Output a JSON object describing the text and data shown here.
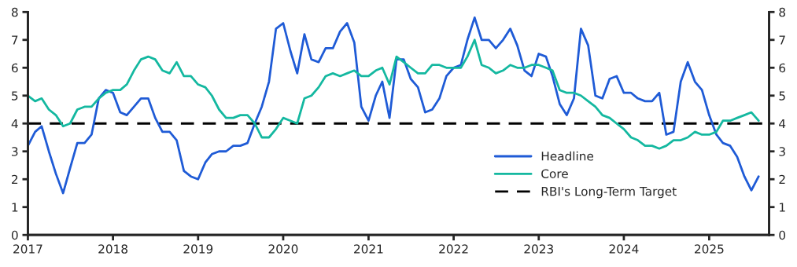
{
  "chart_data": {
    "type": "line",
    "x": [
      "2017-01",
      "2017-02",
      "2017-03",
      "2017-04",
      "2017-05",
      "2017-06",
      "2017-07",
      "2017-08",
      "2017-09",
      "2017-10",
      "2017-11",
      "2017-12",
      "2018-01",
      "2018-02",
      "2018-03",
      "2018-04",
      "2018-05",
      "2018-06",
      "2018-07",
      "2018-08",
      "2018-09",
      "2018-10",
      "2018-11",
      "2018-12",
      "2019-01",
      "2019-02",
      "2019-03",
      "2019-04",
      "2019-05",
      "2019-06",
      "2019-07",
      "2019-08",
      "2019-09",
      "2019-10",
      "2019-11",
      "2019-12",
      "2020-01",
      "2020-02",
      "2020-03",
      "2020-04",
      "2020-05",
      "2020-06",
      "2020-07",
      "2020-08",
      "2020-09",
      "2020-10",
      "2020-11",
      "2020-12",
      "2021-01",
      "2021-02",
      "2021-03",
      "2021-04",
      "2021-05",
      "2021-06",
      "2021-07",
      "2021-08",
      "2021-09",
      "2021-10",
      "2021-11",
      "2021-12",
      "2022-01",
      "2022-02",
      "2022-03",
      "2022-04",
      "2022-05",
      "2022-06",
      "2022-07",
      "2022-08",
      "2022-09",
      "2022-10",
      "2022-11",
      "2022-12",
      "2023-01",
      "2023-02",
      "2023-03",
      "2023-04",
      "2023-05",
      "2023-06",
      "2023-07",
      "2023-08",
      "2023-09",
      "2023-10",
      "2023-11",
      "2023-12",
      "2024-01",
      "2024-02",
      "2024-03",
      "2024-04",
      "2024-05",
      "2024-06",
      "2024-07",
      "2024-08",
      "2024-09",
      "2024-10",
      "2024-11",
      "2024-12",
      "2025-01",
      "2025-02",
      "2025-03",
      "2025-04",
      "2025-05",
      "2025-06",
      "2025-07",
      "2025-08"
    ],
    "series": [
      {
        "name": "Headline",
        "color": "#1f5bd6",
        "values": [
          3.2,
          3.7,
          3.9,
          3.0,
          2.2,
          1.5,
          2.4,
          3.3,
          3.3,
          3.6,
          4.9,
          5.2,
          5.1,
          4.4,
          4.3,
          4.6,
          4.9,
          4.9,
          4.2,
          3.7,
          3.7,
          3.4,
          2.3,
          2.1,
          2.0,
          2.6,
          2.9,
          3.0,
          3.0,
          3.2,
          3.2,
          3.3,
          4.0,
          4.6,
          5.5,
          7.4,
          7.6,
          6.6,
          5.8,
          7.2,
          6.3,
          6.2,
          6.7,
          6.7,
          7.3,
          7.6,
          6.9,
          4.6,
          4.1,
          5.0,
          5.5,
          4.2,
          6.3,
          6.3,
          5.6,
          5.3,
          4.4,
          4.5,
          4.9,
          5.7,
          6.0,
          6.1,
          7.0,
          7.8,
          7.0,
          7.0,
          6.7,
          7.0,
          7.4,
          6.8,
          5.9,
          5.7,
          6.5,
          6.4,
          5.7,
          4.7,
          4.3,
          4.9,
          7.4,
          6.8,
          5.0,
          4.9,
          5.6,
          5.7,
          5.1,
          5.1,
          4.9,
          4.8,
          4.8,
          5.1,
          3.6,
          3.7,
          5.5,
          6.2,
          5.5,
          5.2,
          4.3,
          3.6,
          3.3,
          3.2,
          2.8,
          2.1,
          1.6,
          2.1
        ]
      },
      {
        "name": "Core",
        "color": "#14b8a0",
        "values": [
          5.0,
          4.8,
          4.9,
          4.5,
          4.3,
          3.9,
          4.0,
          4.5,
          4.6,
          4.6,
          4.9,
          5.1,
          5.2,
          5.2,
          5.4,
          5.9,
          6.3,
          6.4,
          6.3,
          5.9,
          5.8,
          6.2,
          5.7,
          5.7,
          5.4,
          5.3,
          5.0,
          4.5,
          4.2,
          4.2,
          4.3,
          4.3,
          4.0,
          3.5,
          3.5,
          3.8,
          4.2,
          4.1,
          4.0,
          4.9,
          5.0,
          5.3,
          5.7,
          5.8,
          5.7,
          5.8,
          5.9,
          5.7,
          5.7,
          5.9,
          6.0,
          5.4,
          6.4,
          6.2,
          6.0,
          5.8,
          5.8,
          6.1,
          6.1,
          6.0,
          6.0,
          6.0,
          6.4,
          7.0,
          6.1,
          6.0,
          5.8,
          5.9,
          6.1,
          6.0,
          6.0,
          6.1,
          6.1,
          6.0,
          5.9,
          5.2,
          5.1,
          5.1,
          5.0,
          4.8,
          4.6,
          4.3,
          4.2,
          4.0,
          3.8,
          3.5,
          3.4,
          3.2,
          3.2,
          3.1,
          3.2,
          3.4,
          3.4,
          3.5,
          3.7,
          3.6,
          3.6,
          3.7,
          4.1,
          4.1,
          4.2,
          4.3,
          4.4,
          4.1
        ]
      }
    ],
    "ref_lines": [
      {
        "axis": "y",
        "value": 4,
        "label": "RBI's Long-Term Target",
        "color": "#000000",
        "line_style": "dashed"
      }
    ],
    "xlim": [
      "2017-01",
      "2025-09-15"
    ],
    "xticks": [
      {
        "value": "2017",
        "label": "2017"
      },
      {
        "value": "2018",
        "label": "2018"
      },
      {
        "value": "2019",
        "label": "2019"
      },
      {
        "value": "2020",
        "label": "2020"
      },
      {
        "value": "2021",
        "label": "2021"
      },
      {
        "value": "2022",
        "label": "2022"
      },
      {
        "value": "2023",
        "label": "2023"
      },
      {
        "value": "2024",
        "label": "2024"
      },
      {
        "value": "2025",
        "label": "2025"
      }
    ],
    "ylim": [
      0,
      8
    ],
    "yticks": [
      0,
      1,
      2,
      3,
      4,
      5,
      6,
      7,
      8
    ],
    "y2lim": [
      0,
      8
    ],
    "y2ticks": [
      0,
      1,
      2,
      3,
      4,
      5,
      6,
      7,
      8
    ],
    "grid": false,
    "legend": "right",
    "marker": "none",
    "line_style": "solid"
  }
}
